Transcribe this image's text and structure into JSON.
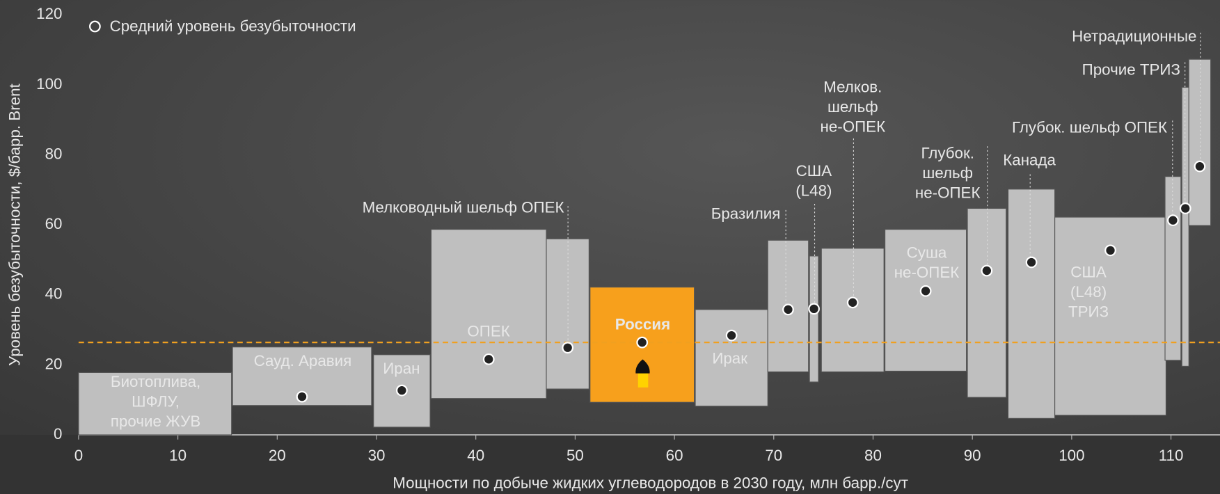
{
  "chart_data": {
    "type": "cost_curve",
    "legend": "Средний уровень безубыточности",
    "xlabel": "Мощности по добыче жидких углеводородов в 2030 году, млн барр./сут",
    "ylabel": "Уровень безубыточности, $/барр. Brent",
    "xlim": [
      0,
      115
    ],
    "ylim": [
      0,
      120
    ],
    "xticks": [
      0,
      10,
      20,
      30,
      40,
      50,
      60,
      70,
      80,
      90,
      100,
      110
    ],
    "yticks": [
      0,
      20,
      40,
      60,
      80,
      100,
      120
    ],
    "color": "#bfbfbf",
    "average": 26.4,
    "average_color": "#f0a020",
    "items": [
      {
        "label": [
          "Биотоплива,",
          "ШФЛУ,",
          "прочие ЖУВ"
        ],
        "x0": 0,
        "x1": 15.4,
        "low": 0,
        "high": 17.8,
        "mean": null
      },
      {
        "label": [
          "Сауд. Аравия"
        ],
        "x0": 15.5,
        "x1": 29.5,
        "low": 8.4,
        "high": 25.1,
        "mean": 10.9
      },
      {
        "label": [
          "Иран"
        ],
        "x0": 29.7,
        "x1": 35.4,
        "low": 2.2,
        "high": 22.9,
        "mean": 12.7
      },
      {
        "label": [
          "ОПЕК"
        ],
        "x0": 35.5,
        "x1": 47.1,
        "low": 10.4,
        "high": 58.7,
        "mean": 21.6
      },
      {
        "label": [
          "Мелководный шельф ОПЕК"
        ],
        "x0": 47.1,
        "x1": 51.4,
        "low": 13.1,
        "high": 56,
        "mean": 24.9
      },
      {
        "label": [
          "Россия"
        ],
        "x0": 51.5,
        "x1": 62.0,
        "low": 9.3,
        "high": 42.2,
        "mean": 26.4,
        "color": "#f7a01c"
      },
      {
        "label": [
          "Ирак"
        ],
        "x0": 62.1,
        "x1": 69.4,
        "low": 8.2,
        "high": 35.8,
        "mean": 28.4
      },
      {
        "label": [
          "Бразилия"
        ],
        "x0": 69.4,
        "x1": 73.5,
        "low": 18,
        "high": 55.6,
        "mean": 35.8
      },
      {
        "label": [
          "США",
          "(L48)"
        ],
        "x0": 73.6,
        "x1": 74.5,
        "low": 15.1,
        "high": 51.1,
        "mean": 36
      },
      {
        "label": [
          "Мелков.",
          "шельф",
          "не-ОПЕК"
        ],
        "x0": 74.8,
        "x1": 81.1,
        "low": 18,
        "high": 53.3,
        "mean": 37.8
      },
      {
        "label": [
          "Суша",
          "не-ОПЕК"
        ],
        "x0": 81.2,
        "x1": 89.4,
        "low": 18.2,
        "high": 58.7,
        "mean": 41.1
      },
      {
        "label": [
          "Глубок.",
          "шельф",
          "не-ОПЕК"
        ],
        "x0": 89.5,
        "x1": 93.4,
        "low": 10.7,
        "high": 64.7,
        "mean": 46.9
      },
      {
        "label": [
          "Канада"
        ],
        "x0": 93.6,
        "x1": 98.3,
        "low": 4.7,
        "high": 70.2,
        "mean": 49.3
      },
      {
        "label": [
          "США",
          "(L48)",
          "ТРИЗ"
        ],
        "x0": 98.3,
        "x1": 109.5,
        "low": 5.6,
        "high": 62.2,
        "mean": 52.7
      },
      {
        "label": [
          "Глубок. шельф ОПЕК"
        ],
        "x0": 109.4,
        "x1": 111,
        "low": 21.3,
        "high": 73.8,
        "mean": 61.3
      },
      {
        "label": [
          "Прочие ТРИЗ"
        ],
        "x0": 111.1,
        "x1": 111.8,
        "low": 19.6,
        "high": 99.3,
        "mean": 64.7
      },
      {
        "label": [
          "Нетрадиционные"
        ],
        "x0": 111.8,
        "x1": 114,
        "low": 59.8,
        "high": 107.3,
        "mean": 76.7
      }
    ]
  }
}
